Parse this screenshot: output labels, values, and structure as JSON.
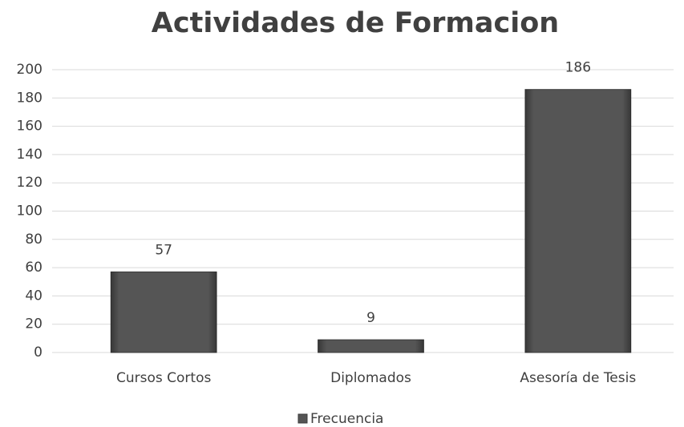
{
  "chart_data": {
    "type": "bar",
    "title": "Actividades de Formacion",
    "categories": [
      "Cursos Cortos",
      "Diplomados",
      "Asesoría de Tesis"
    ],
    "series": [
      {
        "name": "Frecuencia",
        "color": "#555555",
        "values": [
          57,
          9,
          186
        ]
      }
    ],
    "ylim": [
      0,
      200
    ],
    "yticks": [
      0,
      20,
      40,
      60,
      80,
      100,
      120,
      140,
      160,
      180,
      200
    ],
    "grid": true,
    "legend": "bottom",
    "data_labels": true
  }
}
